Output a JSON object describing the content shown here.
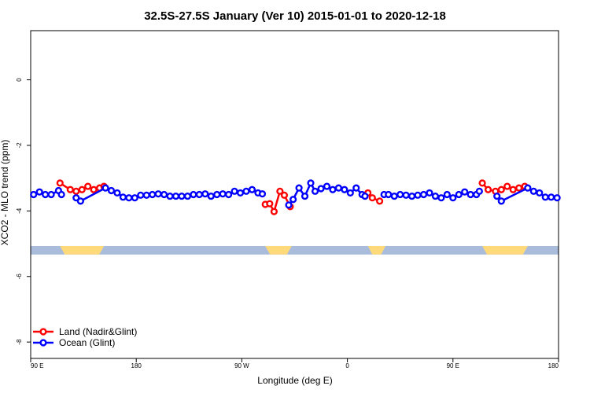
{
  "chart_data": {
    "type": "line",
    "title": "32.5S-27.5S January (Ver 10)   2015-01-01 to 2020-12-18",
    "xlabel": "Longitude (deg E)",
    "ylabel": "XCO2 - MLO trend (ppm)",
    "xlim": [
      0,
      360
    ],
    "ylim": [
      -8.5,
      1.5
    ],
    "x_ticks": [
      {
        "value": 0,
        "label": "90 E"
      },
      {
        "value": 72,
        "label": "180"
      },
      {
        "value": 144,
        "label": "90 W"
      },
      {
        "value": 216,
        "label": "0"
      },
      {
        "value": 288,
        "label": "90 E"
      },
      {
        "value": 360,
        "label": "180"
      }
    ],
    "y_ticks": [
      {
        "value": 0,
        "label": "0"
      },
      {
        "value": -2,
        "label": "-2"
      },
      {
        "value": -4,
        "label": "-4"
      },
      {
        "value": -6,
        "label": "-6"
      },
      {
        "value": -8,
        "label": "-8"
      }
    ],
    "land_band": {
      "y_center": -5.2,
      "y_half_height": 0.13,
      "ocean_color": "#a9bcdc",
      "land_color": "#ffd97a",
      "land_segments": [
        [
          20,
          50
        ],
        [
          160,
          178
        ],
        [
          230,
          242
        ],
        [
          308,
          339
        ]
      ]
    },
    "series": [
      {
        "name": "Land (Nadir&Glint)",
        "color": "#ff0000",
        "segments": [
          {
            "x": [
              20,
              27,
              31,
              35,
              39,
              43,
              47,
              50
            ],
            "y": [
              -3.15,
              -3.35,
              -3.4,
              -3.35,
              -3.25,
              -3.35,
              -3.3,
              -3.25
            ]
          },
          {
            "x": [
              160,
              163,
              166,
              170,
              173,
              177
            ],
            "y": [
              -3.8,
              -3.78,
              -4.02,
              -3.4,
              -3.52,
              -3.87
            ]
          },
          {
            "x": [
              230,
              233,
              238
            ],
            "y": [
              -3.45,
              -3.6,
              -3.7
            ]
          },
          {
            "x": [
              308,
              312,
              317,
              321,
              325,
              329,
              333,
              337
            ],
            "y": [
              -3.15,
              -3.35,
              -3.4,
              -3.35,
              -3.25,
              -3.35,
              -3.3,
              -3.25
            ]
          }
        ]
      },
      {
        "name": "Ocean (Glint)",
        "color": "#0000ff",
        "segments": [
          {
            "x": [
              2,
              6,
              10,
              14,
              19,
              21
            ],
            "y": [
              -3.5,
              -3.42,
              -3.5,
              -3.5,
              -3.38,
              -3.5
            ]
          },
          {
            "x": [
              31,
              34,
              51,
              55,
              59,
              63,
              67,
              71,
              75,
              79,
              83,
              87,
              91,
              95,
              99,
              103,
              107,
              111,
              115,
              119,
              123,
              127,
              131,
              135,
              139,
              143,
              147,
              151,
              155,
              158
            ],
            "y": [
              -3.6,
              -3.7,
              -3.3,
              -3.38,
              -3.45,
              -3.58,
              -3.6,
              -3.6,
              -3.52,
              -3.52,
              -3.5,
              -3.48,
              -3.5,
              -3.55,
              -3.55,
              -3.55,
              -3.55,
              -3.5,
              -3.5,
              -3.48,
              -3.55,
              -3.5,
              -3.48,
              -3.5,
              -3.4,
              -3.45,
              -3.4,
              -3.35,
              -3.45,
              -3.48
            ]
          },
          {
            "x": [
              176,
              179,
              183,
              187,
              191,
              194,
              198,
              202,
              206,
              210,
              214,
              218,
              222,
              226,
              228
            ],
            "y": [
              -3.82,
              -3.65,
              -3.3,
              -3.55,
              -3.15,
              -3.4,
              -3.32,
              -3.25,
              -3.35,
              -3.3,
              -3.35,
              -3.45,
              -3.3,
              -3.5,
              -3.55
            ]
          },
          {
            "x": [
              241,
              244,
              248,
              252,
              256,
              260,
              264,
              268,
              272,
              276,
              280,
              284,
              288,
              292,
              296,
              300,
              304,
              306
            ],
            "y": [
              -3.5,
              -3.5,
              -3.55,
              -3.5,
              -3.52,
              -3.55,
              -3.52,
              -3.5,
              -3.45,
              -3.55,
              -3.6,
              -3.5,
              -3.6,
              -3.5,
              -3.42,
              -3.5,
              -3.5,
              -3.4
            ]
          },
          {
            "x": [
              318,
              321,
              339,
              343,
              347,
              351,
              355,
              359
            ],
            "y": [
              -3.55,
              -3.7,
              -3.3,
              -3.4,
              -3.45,
              -3.58,
              -3.58,
              -3.6
            ]
          }
        ]
      }
    ],
    "legend": {
      "position": "bottom-left"
    }
  }
}
